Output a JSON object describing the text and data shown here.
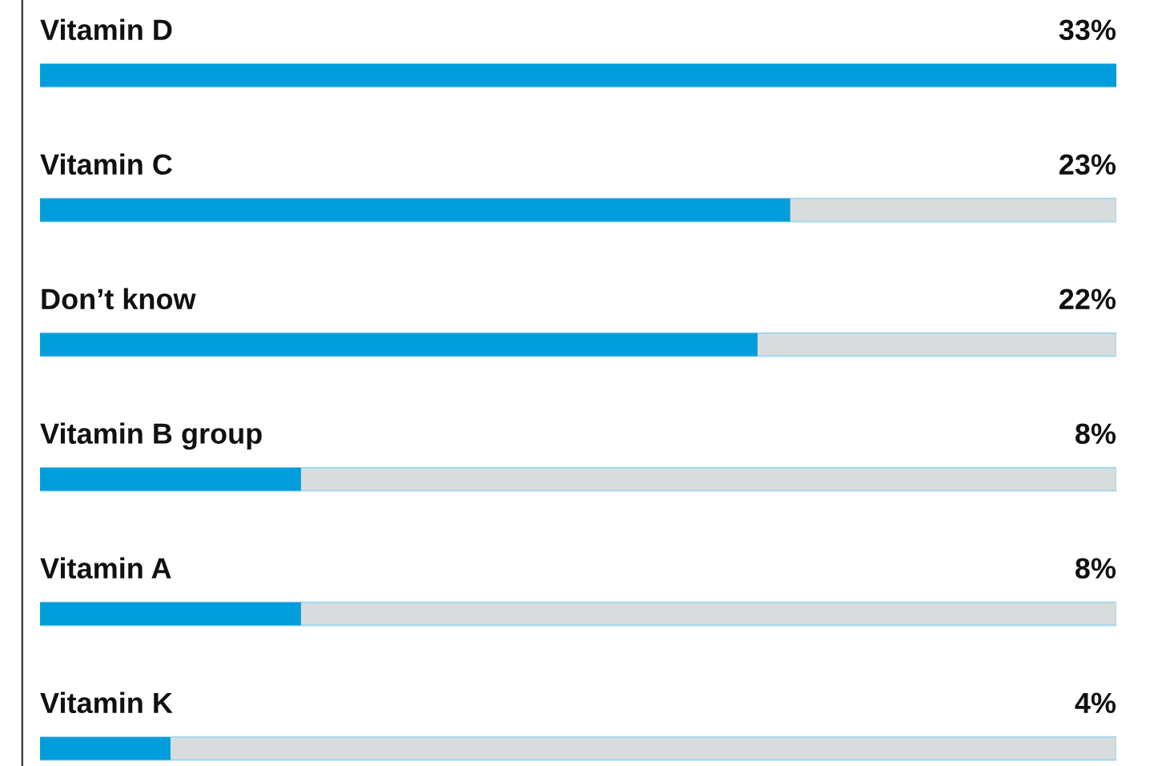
{
  "chart_data": {
    "type": "bar",
    "orientation": "horizontal",
    "categories": [
      "Vitamin D",
      "Vitamin C",
      "Don’t know",
      "Vitamin B group",
      "Vitamin A",
      "Vitamin K"
    ],
    "values": [
      33,
      23,
      22,
      8,
      8,
      4
    ],
    "value_labels": [
      "33%",
      "23%",
      "22%",
      "8%",
      "8%",
      "4%"
    ],
    "color": "#009ddc",
    "xlim": [
      0,
      33
    ]
  }
}
